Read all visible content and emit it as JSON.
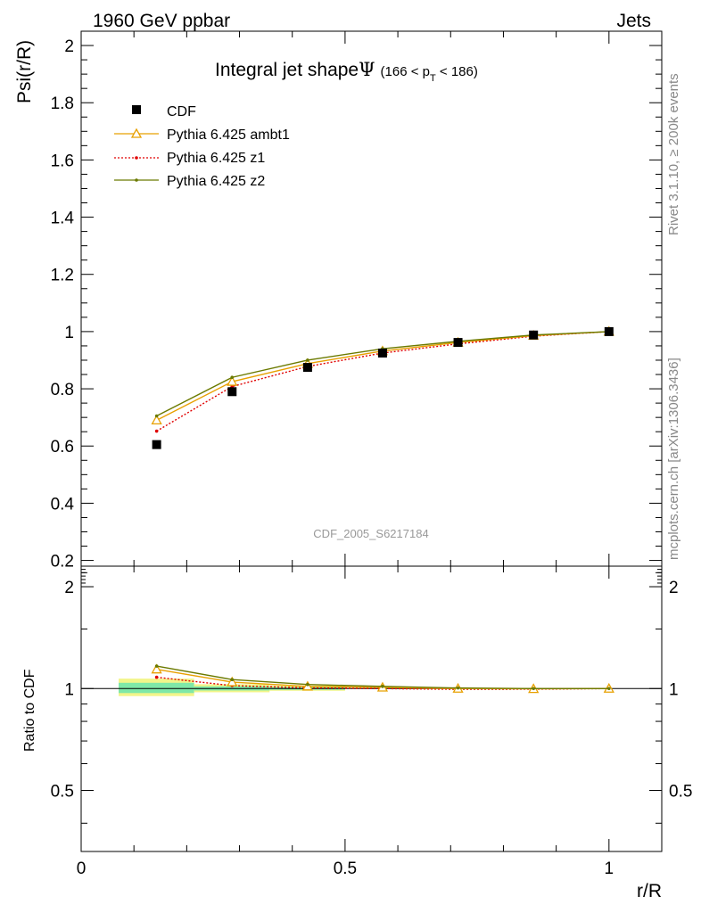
{
  "header": {
    "left_label": "1960 GeV ppbar",
    "right_label": "Jets"
  },
  "side_labels": {
    "rivet": "Rivet 3.1.10, ≥ 200k events",
    "mcplots": "mcplots.cern.ch [arXiv:1306.3436]"
  },
  "colors": {
    "cdf": "#000000",
    "ambt1": "#e8a000",
    "z1": "#e00000",
    "z2": "#6b7a00",
    "band_inner": "#7fe8a8",
    "band_outer": "#f2f58a"
  },
  "chart_data": [
    {
      "type": "line",
      "name": "main",
      "title_main": "Integral jet shape",
      "title_symbol": "Ψ",
      "title_range": "(166 < p",
      "title_sub": "T",
      "title_range_end": " < 186)",
      "ylabel": "Psi(r/R)",
      "watermark": "CDF_2005_S6217184",
      "xlim": [
        0,
        1.1
      ],
      "ylim": [
        0.18,
        2.05
      ],
      "yticks": [
        0.2,
        0.4,
        0.6,
        0.8,
        1,
        1.2,
        1.4,
        1.6,
        1.8,
        2
      ],
      "ytick_labels": [
        "0.2",
        "0.4",
        "0.6",
        "0.8",
        "1",
        "1.2",
        "1.4",
        "1.6",
        "1.8",
        "2"
      ],
      "x": [
        0.143,
        0.286,
        0.429,
        0.571,
        0.714,
        0.857,
        1.0
      ],
      "series": [
        {
          "name": "CDF",
          "key": "cdf",
          "style": "square",
          "values": [
            0.605,
            0.79,
            0.875,
            0.925,
            0.962,
            0.988,
            1.0
          ]
        },
        {
          "name": "Pythia 6.425 ambt1",
          "key": "ambt1",
          "style": "triangle",
          "values": [
            0.69,
            0.825,
            0.888,
            0.932,
            0.962,
            0.986,
            1.0
          ]
        },
        {
          "name": "Pythia 6.425 z1",
          "key": "z1",
          "style": "dotted",
          "values": [
            0.652,
            0.808,
            0.878,
            0.925,
            0.957,
            0.984,
            1.0
          ]
        },
        {
          "name": "Pythia 6.425 z2",
          "key": "z2",
          "style": "solid-dot",
          "values": [
            0.705,
            0.84,
            0.9,
            0.94,
            0.966,
            0.988,
            1.0
          ]
        }
      ]
    },
    {
      "type": "line",
      "name": "ratio",
      "ylabel": "Ratio to CDF",
      "xlabel": "r/R",
      "scale": "log",
      "xlim": [
        0,
        1.1
      ],
      "ylim": [
        0.33,
        2.3
      ],
      "yticks": [
        0.5,
        1,
        2
      ],
      "ytick_labels": [
        "0.5",
        "1",
        "2"
      ],
      "xticks": [
        0,
        0.5,
        1
      ],
      "xtick_labels": [
        "0",
        "0.5",
        "1"
      ],
      "x": [
        0.143,
        0.286,
        0.429,
        0.571,
        0.714,
        0.857,
        1.0
      ],
      "bands": [
        {
          "x0": 0.071,
          "x1": 0.214,
          "outer": [
            0.95,
            1.07
          ],
          "inner": [
            0.97,
            1.04
          ]
        },
        {
          "x0": 0.214,
          "x1": 0.357,
          "outer": [
            0.975,
            1.03
          ],
          "inner": [
            0.987,
            1.015
          ]
        },
        {
          "x0": 0.357,
          "x1": 0.5,
          "outer": [
            0.985,
            1.02
          ],
          "inner": [
            0.992,
            1.01
          ]
        }
      ],
      "series": [
        {
          "name": "Pythia 6.425 ambt1",
          "key": "ambt1",
          "style": "triangle",
          "values": [
            1.14,
            1.045,
            1.015,
            1.008,
            1.0,
            0.998,
            1.0
          ]
        },
        {
          "name": "Pythia 6.425 z1",
          "key": "z1",
          "style": "dotted",
          "values": [
            1.08,
            1.02,
            1.005,
            1.0,
            0.995,
            0.996,
            1.0
          ]
        },
        {
          "name": "Pythia 6.425 z2",
          "key": "z2",
          "style": "solid-dot",
          "values": [
            1.165,
            1.063,
            1.028,
            1.015,
            1.004,
            1.0,
            1.0
          ]
        }
      ]
    }
  ]
}
